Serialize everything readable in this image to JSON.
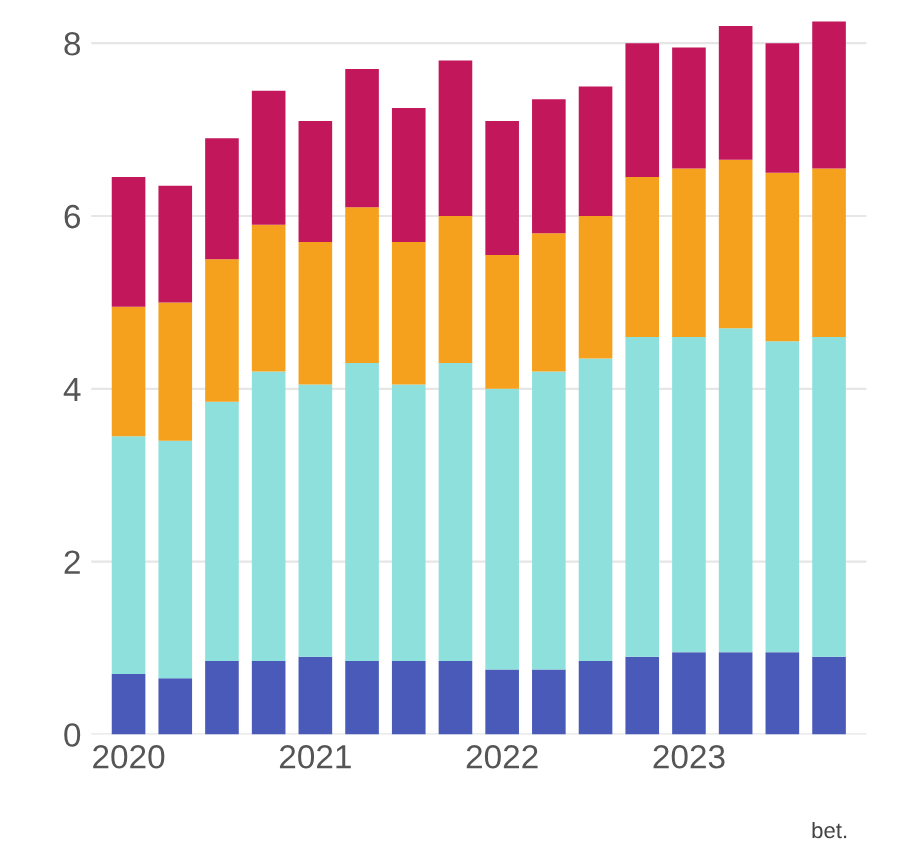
{
  "chart_data": {
    "type": "bar",
    "stacked": true,
    "categories": [
      "2020",
      null,
      null,
      null,
      "2021",
      null,
      null,
      null,
      "2022",
      null,
      null,
      null,
      "2023",
      null,
      null,
      null
    ],
    "series": [
      {
        "color": "#4a5ab8",
        "values": [
          0.7,
          0.65,
          0.85,
          0.85,
          0.9,
          0.85,
          0.85,
          0.85,
          0.75,
          0.75,
          0.85,
          0.9,
          0.95,
          0.95,
          0.95,
          0.9
        ]
      },
      {
        "color": "#8ee0dc",
        "values": [
          2.75,
          2.75,
          3.0,
          3.35,
          3.15,
          3.45,
          3.2,
          3.45,
          3.25,
          3.45,
          3.5,
          3.7,
          3.65,
          3.75,
          3.6,
          3.7
        ]
      },
      {
        "color": "#f5a11e",
        "values": [
          1.5,
          1.6,
          1.65,
          1.7,
          1.65,
          1.8,
          1.65,
          1.7,
          1.55,
          1.6,
          1.65,
          1.85,
          1.95,
          1.95,
          1.95,
          1.95
        ]
      },
      {
        "color": "#c2185b",
        "values": [
          1.5,
          1.35,
          1.4,
          1.55,
          1.4,
          1.6,
          1.55,
          1.8,
          1.55,
          1.55,
          1.5,
          1.55,
          1.4,
          1.55,
          1.5,
          1.7
        ]
      }
    ],
    "ylim": [
      0,
      8.3
    ],
    "yticks": [
      0,
      2,
      4,
      6,
      8
    ],
    "grid": "y",
    "annotations": [
      "bet."
    ]
  }
}
